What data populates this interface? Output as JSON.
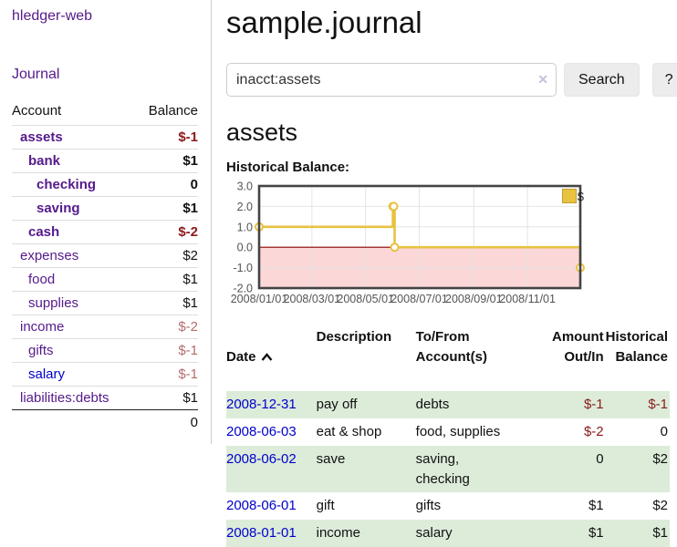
{
  "app": {
    "brand": "hledger-web",
    "nav_journal": "Journal"
  },
  "sidebar": {
    "header": {
      "account": "Account",
      "balance": "Balance"
    },
    "accounts": [
      {
        "name": "assets",
        "balance": "$-1",
        "level": 1,
        "bold": true,
        "name_color": "purple",
        "balance_color": "negative"
      },
      {
        "name": "bank",
        "balance": "$1",
        "level": 2,
        "bold": true,
        "name_color": "purple",
        "balance_color": "normal"
      },
      {
        "name": "checking",
        "balance": "0",
        "level": 3,
        "bold": true,
        "name_color": "purple",
        "balance_color": "normal"
      },
      {
        "name": "saving",
        "balance": "$1",
        "level": 3,
        "bold": true,
        "name_color": "purple",
        "balance_color": "normal"
      },
      {
        "name": "cash",
        "balance": "$-2",
        "level": 2,
        "bold": true,
        "name_color": "purple",
        "balance_color": "negative"
      },
      {
        "name": "expenses",
        "balance": "$2",
        "level": 1,
        "bold": false,
        "name_color": "purple",
        "balance_color": "normal"
      },
      {
        "name": "food",
        "balance": "$1",
        "level": 2,
        "bold": false,
        "name_color": "purple",
        "balance_color": "normal"
      },
      {
        "name": "supplies",
        "balance": "$1",
        "level": 2,
        "bold": false,
        "name_color": "purple",
        "balance_color": "normal"
      },
      {
        "name": "income",
        "balance": "$-2",
        "level": 1,
        "bold": false,
        "name_color": "purple",
        "balance_color": "negative-faded"
      },
      {
        "name": "gifts",
        "balance": "$-1",
        "level": 2,
        "bold": false,
        "name_color": "purple",
        "balance_color": "negative-faded"
      },
      {
        "name": "salary",
        "balance": "$-1",
        "level": 2,
        "bold": false,
        "name_color": "blue",
        "balance_color": "negative-faded"
      },
      {
        "name": "liabilities:debts",
        "balance": "$1",
        "level": 1,
        "bold": false,
        "name_color": "purple",
        "balance_color": "normal"
      }
    ],
    "total": "0"
  },
  "main": {
    "title": "sample.journal",
    "search": {
      "value": "inacct:assets",
      "clear_icon": "✕",
      "button_label": "Search",
      "help_label": "?"
    },
    "account_heading": "assets",
    "chart_heading": "Historical Balance:",
    "register": {
      "headers": {
        "date": "Date",
        "description": "Description",
        "accounts": "To/From\nAccount(s)",
        "amount": "Amount\nOut/In",
        "balance": "Historical\nBalance"
      },
      "rows": [
        {
          "date": "2008-12-31",
          "description": "pay off",
          "accounts": "debts",
          "amount": "$-1",
          "amount_negative": true,
          "balance": "$-1",
          "balance_negative": true
        },
        {
          "date": "2008-06-03",
          "description": "eat & shop",
          "accounts": "food, supplies",
          "amount": "$-2",
          "amount_negative": true,
          "balance": "0",
          "balance_negative": false
        },
        {
          "date": "2008-06-02",
          "description": "save",
          "accounts": "saving,\nchecking",
          "amount": "0",
          "amount_negative": false,
          "balance": "$2",
          "balance_negative": false
        },
        {
          "date": "2008-06-01",
          "description": "gift",
          "accounts": "gifts",
          "amount": "$1",
          "amount_negative": false,
          "balance": "$2",
          "balance_negative": false
        },
        {
          "date": "2008-01-01",
          "description": "income",
          "accounts": "salary",
          "amount": "$1",
          "amount_negative": false,
          "balance": "$1",
          "balance_negative": false
        }
      ]
    }
  },
  "chart_data": {
    "type": "line",
    "title": "Historical Balance:",
    "step": true,
    "xrange": [
      "2008-01-01",
      "2008-12-31"
    ],
    "ylim": [
      -2,
      3
    ],
    "yticks": [
      3,
      2,
      1,
      0,
      -1,
      -2
    ],
    "ytick_labels": [
      "3.0",
      "2.0",
      "1.0",
      "0.0",
      "-1.0",
      "-2.0"
    ],
    "xticks": [
      "2008-01-01",
      "2008-03-01",
      "2008-05-01",
      "2008-07-01",
      "2008-09-01",
      "2008-11-01"
    ],
    "xtick_labels": [
      "2008/01/01",
      "2008/03/01",
      "2008/05/01",
      "2008/07/01",
      "2008/09/01",
      "2008/11/01"
    ],
    "series": [
      {
        "name": "$",
        "color": "#e8c240",
        "points": [
          {
            "date": "2008-01-01",
            "value": 1
          },
          {
            "date": "2008-06-01",
            "value": 2
          },
          {
            "date": "2008-06-02",
            "value": 2
          },
          {
            "date": "2008-06-03",
            "value": 0
          },
          {
            "date": "2008-12-31",
            "value": -1
          }
        ]
      }
    ],
    "legend": {
      "position": "top-right",
      "label": "$"
    },
    "grid": true
  },
  "colors": {
    "link_purple": "#551a8b",
    "link_blue": "#0000cc",
    "negative": "#8b1a1a",
    "negative_faded": "#b56d6d",
    "row_green": "#dcecd9",
    "chart_gold": "#e8c240",
    "chart_negative_fill": "#fbd7d7",
    "chart_zero_line": "#8b0000",
    "chart_border": "#444444",
    "chart_grid": "#e4e4e4",
    "chart_axis_text": "#545454"
  }
}
